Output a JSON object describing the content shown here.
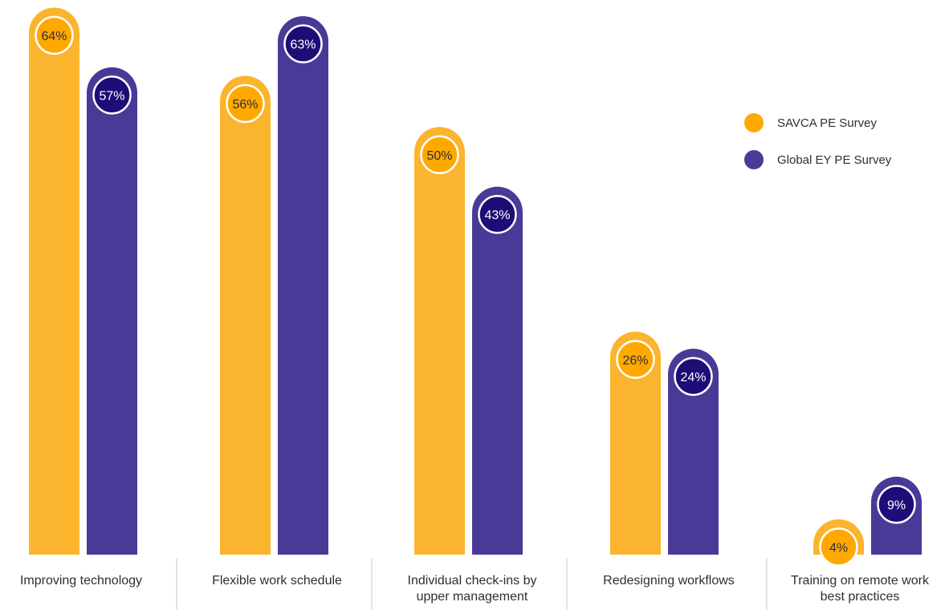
{
  "chart_data": {
    "type": "bar",
    "categories": [
      [
        "Improving technology"
      ],
      [
        "Flexible work schedule"
      ],
      [
        "Individual check-ins by",
        "upper management"
      ],
      [
        "Redesigning workflows"
      ],
      [
        "Training on remote work",
        "best practices"
      ]
    ],
    "series": [
      {
        "name": "SAVCA PE Survey",
        "values": [
          64,
          56,
          50,
          26,
          4
        ],
        "labels": [
          "64%",
          "56%",
          "50%",
          "26%",
          "4%"
        ]
      },
      {
        "name": "Global EY PE Survey",
        "values": [
          57,
          63,
          43,
          24,
          9
        ],
        "labels": [
          "57%",
          "63%",
          "43%",
          "24%",
          "9%"
        ]
      }
    ],
    "ylim": [
      0,
      70
    ],
    "grid": false,
    "legend": "top-right",
    "colors": {
      "series": [
        "#FBB42D",
        "#4A3A97"
      ],
      "badge_fill": [
        "#FFA800",
        "#1F0C76"
      ],
      "badge_text": [
        "#2e2e38",
        "#ffffff"
      ],
      "divider": "#c8c8cc"
    }
  }
}
